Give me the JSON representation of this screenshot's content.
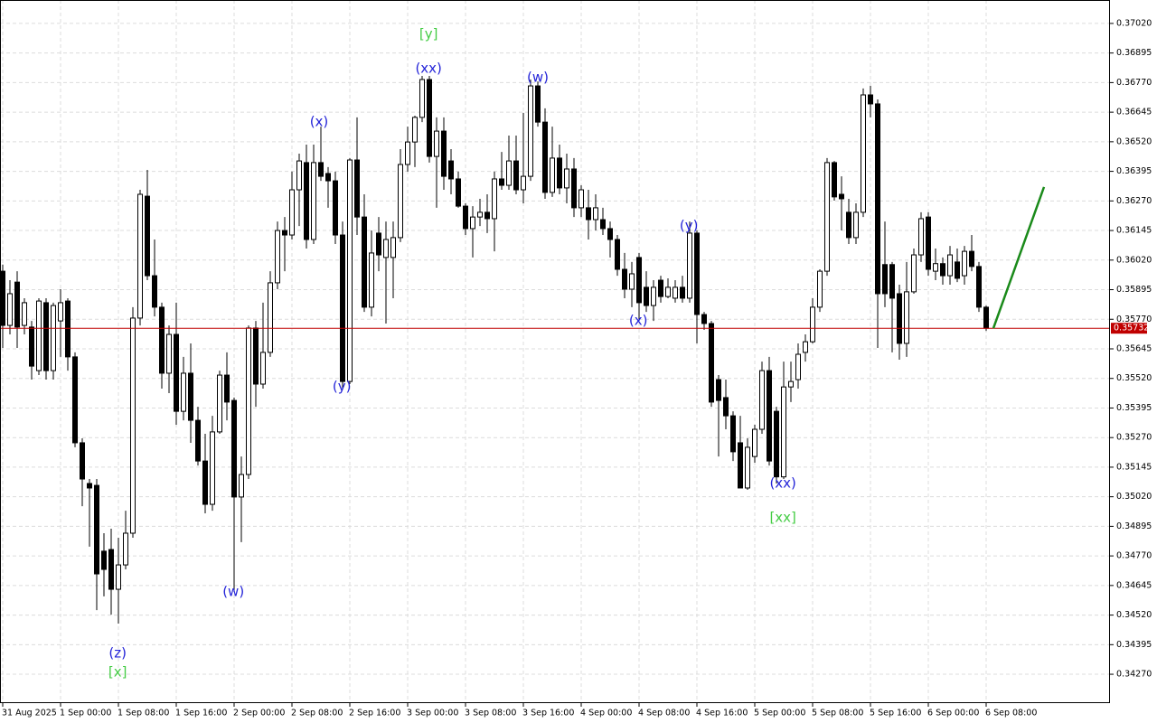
{
  "chart_data": {
    "type": "candlestick",
    "xlim": [
      -0.375,
      153.125
    ],
    "ylim": [
      0.34148,
      0.37119
    ],
    "grid": true,
    "up_color": "#ffffff",
    "down_color": "#000000",
    "edge_color": "#000000",
    "yticks": [
      {
        "value": 0.3702,
        "label": "0.37020"
      },
      0.36895,
      {
        "value": 0.3677,
        "label": "0.36770"
      },
      0.36645,
      {
        "value": 0.3652,
        "label": "0.36520"
      },
      0.36395,
      {
        "value": 0.3627,
        "label": "0.36270"
      },
      0.36145,
      {
        "value": 0.3602,
        "label": "0.36020"
      },
      0.35895,
      {
        "value": 0.3577,
        "label": "0.35770"
      },
      0.35645,
      {
        "value": 0.3552,
        "label": "0.35520"
      },
      0.35395,
      {
        "value": 0.3527,
        "label": "0.35270"
      },
      0.35145,
      {
        "value": 0.3502,
        "label": "0.35020"
      },
      0.34895,
      {
        "value": 0.3477,
        "label": "0.34770"
      },
      0.34645,
      {
        "value": 0.3452,
        "label": "0.34520"
      },
      0.34395,
      {
        "value": 0.3427,
        "label": "0.34270"
      }
    ],
    "xticks": [
      {
        "value": 0,
        "label": "31 Aug 2025"
      },
      {
        "value": 8,
        "label": "1 Sep 00:00"
      },
      {
        "value": 16,
        "label": "1 Sep 08:00"
      },
      {
        "value": 24,
        "label": "1 Sep 16:00"
      },
      {
        "value": 32,
        "label": "2 Sep 00:00"
      },
      {
        "value": 40,
        "label": "2 Sep 08:00"
      },
      {
        "value": 48,
        "label": "2 Sep 16:00"
      },
      {
        "value": 56,
        "label": "3 Sep 00:00"
      },
      {
        "value": 64,
        "label": "3 Sep 08:00"
      },
      {
        "value": 72,
        "label": "3 Sep 16:00"
      },
      {
        "value": 80,
        "label": "4 Sep 00:00"
      },
      {
        "value": 88,
        "label": "4 Sep 08:00"
      },
      {
        "value": 96,
        "label": "4 Sep 16:00"
      },
      {
        "value": 104,
        "label": "5 Sep 00:00"
      },
      {
        "value": 112,
        "label": "5 Sep 08:00"
      },
      {
        "value": 120,
        "label": "5 Sep 16:00"
      },
      {
        "value": 128,
        "label": "6 Sep 00:00"
      },
      {
        "value": 136,
        "label": "6 Sep 08:00"
      }
    ],
    "open": [
      0.35973,
      0.35744,
      0.35927,
      0.35744,
      0.35737,
      0.35553,
      0.3584,
      0.35553,
      0.35763,
      0.35847,
      0.35611,
      0.35248,
      0.35076,
      0.35068,
      0.3479,
      0.34797,
      0.34629,
      0.34732,
      0.34866,
      0.35775,
      0.3629,
      0.35954,
      0.35821,
      0.35542,
      0.35706,
      0.35381,
      0.35542,
      0.35343,
      0.35171,
      0.34988,
      0.35294,
      0.35534,
      0.35427,
      0.35019,
      0.35114,
      0.35733,
      0.35496,
      0.3563,
      0.35924,
      0.36145,
      0.36126,
      0.36317,
      0.36432,
      0.36107,
      0.36432,
      0.36386,
      0.36355,
      0.36126,
      0.35507,
      0.36443,
      0.36202,
      0.35821,
      0.36134,
      0.36031,
      0.36031,
      0.36115,
      0.36424,
      0.36519,
      0.36623,
      0.36783,
      0.36458,
      0.36565,
      0.36439,
      0.36363,
      0.36248,
      0.36153,
      0.36202,
      0.36222,
      0.36195,
      0.36363,
      0.36336,
      0.36439,
      0.36317,
      0.36374,
      0.36756,
      0.36603,
      0.36306,
      0.36451,
      0.36325,
      0.36405,
      0.36241,
      0.36241,
      0.36191,
      0.36191,
      0.36153,
      0.36107,
      0.35981,
      0.35897,
      0.36031,
      0.35905,
      0.35828,
      0.35935,
      0.35866,
      0.35859,
      0.35905,
      0.35859,
      0.36134,
      0.3579,
      0.35752,
      0.35515,
      0.35439,
      0.35362,
      0.35248,
      0.35057,
      0.3519,
      0.35305,
      0.35553,
      0.35381,
      0.35104,
      0.35484,
      0.35515,
      0.3563,
      0.35675,
      0.35821,
      0.35973,
      0.36432,
      0.36298,
      0.36222,
      0.36115,
      0.36222,
      0.36718,
      0.3668,
      0.36001,
      0.36001,
      0.35878,
      0.35668,
      0.35886,
      0.36042,
      0.36202,
      0.35973,
      0.36005,
      0.35954,
      0.36012,
      0.35954,
      0.36057,
      0.35993,
      0.35821
    ],
    "high": [
      0.36001,
      0.35935,
      0.35973,
      0.35859,
      0.35763,
      0.35859,
      0.35859,
      0.3584,
      0.35897,
      0.35859,
      0.3563,
      0.35267,
      0.35095,
      0.35095,
      0.34866,
      0.34885,
      0.34847,
      0.34961,
      0.35821,
      0.36317,
      0.36401,
      0.36107,
      0.3584,
      0.35744,
      0.3584,
      0.35611,
      0.35668,
      0.354,
      0.35286,
      0.35362,
      0.35553,
      0.3563,
      0.35439,
      0.3519,
      0.35744,
      0.35763,
      0.3584,
      0.35973,
      0.36183,
      0.36202,
      0.36394,
      0.3647,
      0.36508,
      0.36508,
      0.36584,
      0.36413,
      0.36394,
      0.36183,
      0.36451,
      0.36623,
      0.36298,
      0.36145,
      0.36202,
      0.36183,
      0.36183,
      0.36489,
      0.36584,
      0.3663,
      0.36798,
      0.36798,
      0.36623,
      0.36623,
      0.36489,
      0.36394,
      0.3626,
      0.36248,
      0.36279,
      0.36298,
      0.36394,
      0.36477,
      0.36546,
      0.36546,
      0.36642,
      0.36783,
      0.36775,
      0.36661,
      0.36584,
      0.36508,
      0.3647,
      0.36451,
      0.36336,
      0.36317,
      0.36298,
      0.36241,
      0.36183,
      0.36126,
      0.3605,
      0.36012,
      0.3605,
      0.35973,
      0.35935,
      0.35954,
      0.35943,
      0.35935,
      0.35954,
      0.36183,
      0.36145,
      0.35801,
      0.35763,
      0.35534,
      0.35515,
      0.35381,
      0.35362,
      0.35267,
      0.35324,
      0.35591,
      0.35611,
      0.354,
      0.35591,
      0.35591,
      0.35668,
      0.35706,
      0.35859,
      0.35981,
      0.36451,
      0.36439,
      0.36374,
      0.36279,
      0.3626,
      0.36745,
      0.36756,
      0.36699,
      0.36183,
      0.36012,
      0.35916,
      0.36012,
      0.36069,
      0.36222,
      0.36222,
      0.36069,
      0.36031,
      0.3608,
      0.36069,
      0.3608,
      0.36126,
      0.36012,
      0.35828
    ],
    "low": [
      0.35649,
      0.35706,
      0.35649,
      0.35706,
      0.35515,
      0.35534,
      0.35515,
      0.35515,
      0.35611,
      0.35553,
      0.35229,
      0.3498,
      0.34809,
      0.34541,
      0.34599,
      0.34522,
      0.34484,
      0.34713,
      0.34847,
      0.35744,
      0.35935,
      0.35782,
      0.35477,
      0.35458,
      0.35324,
      0.35343,
      0.35248,
      0.35152,
      0.3495,
      0.34961,
      0.35286,
      0.35343,
      0.34618,
      0.34828,
      0.35095,
      0.354,
      0.35477,
      0.35611,
      0.35897,
      0.35973,
      0.36107,
      0.36164,
      0.36069,
      0.36088,
      0.36355,
      0.36241,
      0.36088,
      0.35477,
      0.35496,
      0.36126,
      0.35801,
      0.35782,
      0.35973,
      0.35752,
      0.35859,
      0.36096,
      0.36394,
      0.36413,
      0.36603,
      0.36432,
      0.36241,
      0.36317,
      0.36298,
      0.36241,
      0.36126,
      0.36031,
      0.36164,
      0.36134,
      0.36057,
      0.36317,
      0.36317,
      0.36298,
      0.3626,
      0.36355,
      0.36584,
      0.36279,
      0.36287,
      0.36298,
      0.3626,
      0.36202,
      0.36202,
      0.36107,
      0.36145,
      0.36126,
      0.36031,
      0.35954,
      0.35859,
      0.35821,
      0.35763,
      0.35801,
      0.35763,
      0.3584,
      0.35859,
      0.3584,
      0.3584,
      0.3584,
      0.35668,
      0.35725,
      0.354,
      0.3519,
      0.35305,
      0.35171,
      0.35057,
      0.35049,
      0.35164,
      0.35286,
      0.35152,
      0.35076,
      0.35095,
      0.3542,
      0.35477,
      0.35591,
      0.35668,
      0.35801,
      0.35954,
      0.36271,
      0.36145,
      0.36088,
      0.36088,
      0.36202,
      0.36623,
      0.35649,
      0.35821,
      0.3563,
      0.35599,
      0.35611,
      0.35878,
      0.36012,
      0.35954,
      0.35935,
      0.35916,
      0.35916,
      0.35927,
      0.35916,
      0.35973,
      0.35801,
      0.35721
    ],
    "close": [
      0.35744,
      0.35878,
      0.35737,
      0.3584,
      0.35572,
      0.35847,
      0.35553,
      0.35828,
      0.3584,
      0.35611,
      0.35248,
      0.35095,
      0.35057,
      0.34694,
      0.34713,
      0.34629,
      0.34732,
      0.34866,
      0.35775,
      0.36298,
      0.35954,
      0.35821,
      0.35542,
      0.35706,
      0.35381,
      0.35542,
      0.35343,
      0.35171,
      0.34988,
      0.35294,
      0.35534,
      0.3542,
      0.35019,
      0.35114,
      0.35733,
      0.35496,
      0.3563,
      0.35924,
      0.36145,
      0.36126,
      0.36317,
      0.36439,
      0.36107,
      0.36432,
      0.36374,
      0.36355,
      0.36126,
      0.35507,
      0.36443,
      0.36202,
      0.35821,
      0.3605,
      0.36042,
      0.36107,
      0.36115,
      0.36424,
      0.36519,
      0.36623,
      0.36783,
      0.36458,
      0.36565,
      0.36374,
      0.36363,
      0.36248,
      0.36153,
      0.36202,
      0.36222,
      0.36195,
      0.36363,
      0.36336,
      0.36439,
      0.36317,
      0.36374,
      0.36756,
      0.36603,
      0.36306,
      0.36451,
      0.36325,
      0.36405,
      0.36241,
      0.36317,
      0.36191,
      0.36241,
      0.36153,
      0.36107,
      0.35981,
      0.35897,
      0.35962,
      0.3584,
      0.35828,
      0.35905,
      0.35866,
      0.35905,
      0.35905,
      0.35859,
      0.36134,
      0.3579,
      0.35752,
      0.3542,
      0.35427,
      0.35362,
      0.3521,
      0.35057,
      0.35229,
      0.35305,
      0.35553,
      0.35171,
      0.35104,
      0.35484,
      0.35507,
      0.35622,
      0.35675,
      0.35821,
      0.35973,
      0.36432,
      0.36287,
      0.36279,
      0.36115,
      0.36222,
      0.36718,
      0.3668,
      0.35878,
      0.35878,
      0.35859,
      0.35668,
      0.35886,
      0.36042,
      0.36195,
      0.35981,
      0.36005,
      0.35954,
      0.36042,
      0.35943,
      0.36057,
      0.35993,
      0.35821,
      0.35732
    ],
    "last_price": 0.35732,
    "last_price_color": "#c00000",
    "projection": {
      "x": [
        137,
        144
      ],
      "y": [
        0.35732,
        0.36329
      ],
      "color": "#1a8a1a"
    },
    "annotations": [
      {
        "text": "(z)",
        "x": 15.9,
        "y": 0.34358,
        "color": "#2424d8"
      },
      {
        "text": "[x]",
        "x": 15.9,
        "y": 0.34278,
        "color": "#44cc44"
      },
      {
        "text": "(w)",
        "x": 31.9,
        "y": 0.34618,
        "color": "#2424d8"
      },
      {
        "text": "(x)",
        "x": 43.75,
        "y": 0.36603,
        "color": "#2424d8"
      },
      {
        "text": "(y)",
        "x": 46.9,
        "y": 0.35484,
        "color": "#2424d8"
      },
      {
        "text": "[y]",
        "x": 58.9,
        "y": 0.36974,
        "color": "#44cc44"
      },
      {
        "text": "(xx)",
        "x": 58.9,
        "y": 0.36829,
        "color": "#2424d8"
      },
      {
        "text": "(w)",
        "x": 74,
        "y": 0.36791,
        "color": "#2424d8"
      },
      {
        "text": "(x)",
        "x": 87.9,
        "y": 0.35763,
        "color": "#2424d8"
      },
      {
        "text": "(y)",
        "x": 94.9,
        "y": 0.36164,
        "color": "#2424d8"
      },
      {
        "text": "(xx)",
        "x": 107.9,
        "y": 0.35076,
        "color": "#2424d8"
      },
      {
        "text": "[xx]",
        "x": 107.9,
        "y": 0.34931,
        "color": "#44cc44"
      }
    ]
  }
}
